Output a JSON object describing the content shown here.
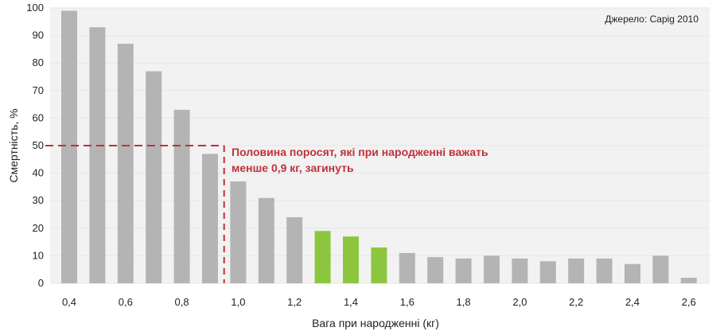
{
  "chart_data": {
    "type": "bar",
    "title": "",
    "xlabel": "Вага при народженні (кг)",
    "ylabel": "Смертність, %",
    "source": "Джерело: Capig 2010",
    "ylim": [
      0,
      100
    ],
    "yticks": [
      "0",
      "10",
      "20",
      "30",
      "40",
      "50",
      "60",
      "70",
      "80",
      "90",
      "100"
    ],
    "categories": [
      "0,4",
      "0,5",
      "0,6",
      "0,7",
      "0,8",
      "0,9",
      "1,0",
      "1,1",
      "1,2",
      "1,3",
      "1,4",
      "1,5",
      "1,6",
      "1,7",
      "1,8",
      "1,9",
      "2,0",
      "2,1",
      "2,2",
      "2,3",
      "2,4",
      "2,5",
      "2,6"
    ],
    "xtick_labels": [
      "0,4",
      "0,6",
      "0,8",
      "1,0",
      "1,2",
      "1,4",
      "1,6",
      "1,8",
      "2,0",
      "2,2",
      "2,4",
      "2,6"
    ],
    "values": [
      99,
      93,
      87,
      77,
      63,
      47,
      37,
      31,
      24,
      19,
      17,
      13,
      11,
      9.5,
      9,
      10,
      9,
      8,
      9,
      9,
      7,
      10,
      2
    ],
    "highlight_categories": [
      "1,3",
      "1,4",
      "1,5"
    ],
    "colors": {
      "bar": "#b4b4b4",
      "highlight": "#8cc63f",
      "annotation": "#c0313a",
      "grid": "#e6e6e6",
      "plot_background": "#f2f2f2"
    },
    "grid": true,
    "annotation": {
      "threshold_y": 50,
      "threshold_x": "0,95",
      "line1": "Половина поросят, які при народженні важать",
      "line2": "менше 0,9 кг, загинуть"
    }
  }
}
